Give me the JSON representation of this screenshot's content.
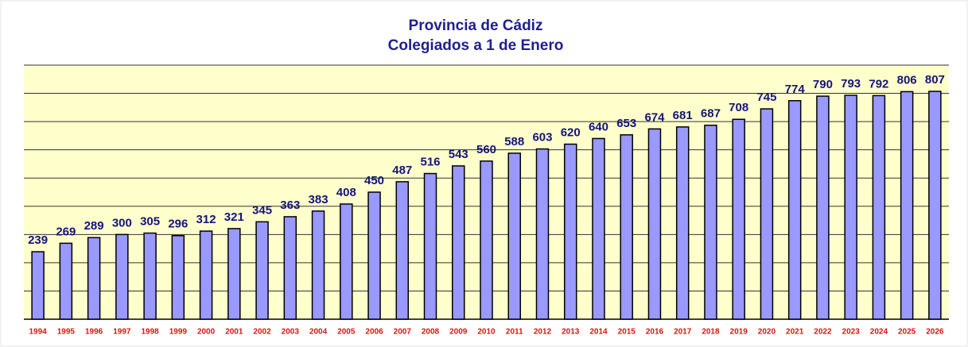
{
  "chart_data": {
    "type": "bar",
    "title": "Provincia de Cádiz",
    "subtitle": "Colegiados a 1 de Enero",
    "categories": [
      "1994",
      "1995",
      "1996",
      "1997",
      "1998",
      "1999",
      "2000",
      "2001",
      "2002",
      "2003",
      "2004",
      "2005",
      "2006",
      "2007",
      "2008",
      "2009",
      "2010",
      "2011",
      "2012",
      "2013",
      "2014",
      "2015",
      "2016",
      "2017",
      "2018",
      "2019",
      "2020",
      "2021",
      "2022",
      "2023",
      "2024",
      "2025",
      "2026"
    ],
    "values": [
      239,
      269,
      289,
      300,
      305,
      296,
      312,
      321,
      345,
      363,
      383,
      408,
      450,
      487,
      516,
      543,
      560,
      588,
      603,
      620,
      640,
      653,
      674,
      681,
      687,
      708,
      745,
      774,
      790,
      793,
      792,
      806,
      807
    ],
    "color": "#9999ff",
    "ylim": [
      0,
      900
    ],
    "yticks": [
      0,
      100,
      200,
      300,
      400,
      500,
      600,
      700,
      800,
      900
    ],
    "grid": true
  }
}
